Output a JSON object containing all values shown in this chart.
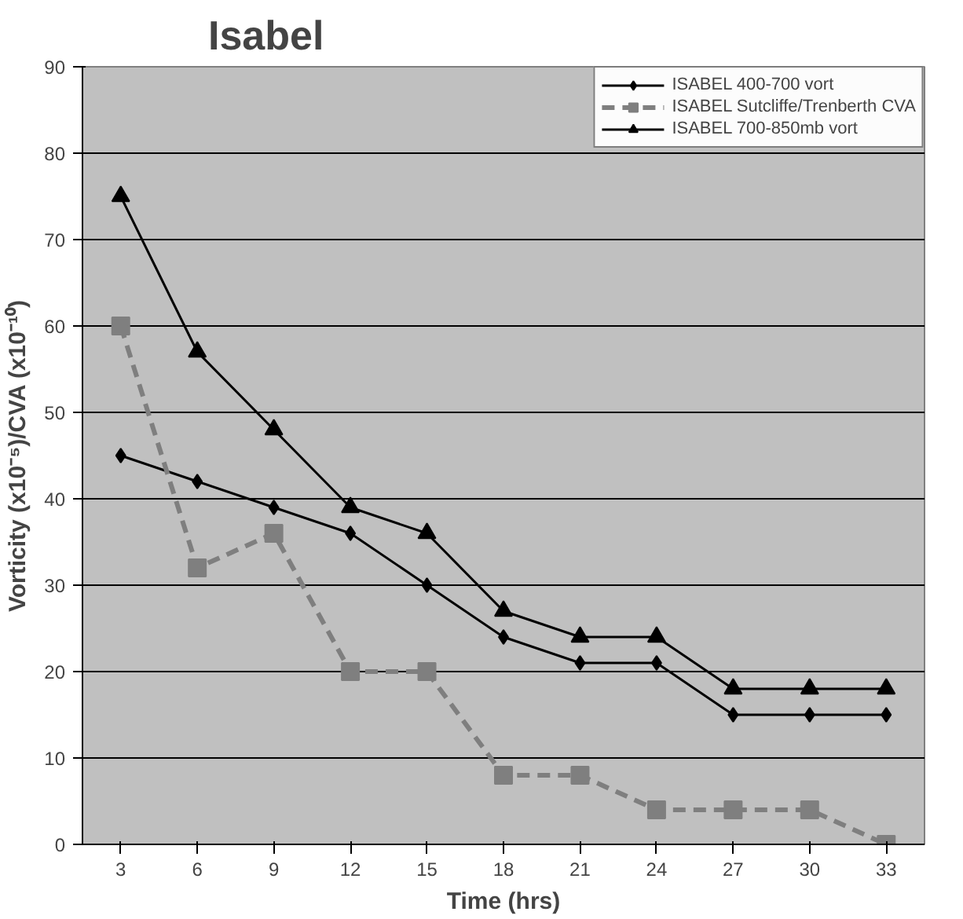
{
  "chart_data": {
    "type": "line",
    "title": "Isabel",
    "xlabel": "Time (hrs)",
    "ylabel": "Vorticity (x10⁻⁵)/CVA (x10⁻¹⁰)",
    "categories": [
      "3",
      "6",
      "9",
      "12",
      "15",
      "18",
      "21",
      "24",
      "27",
      "30",
      "33"
    ],
    "ylim": [
      0,
      90
    ],
    "yticks": [
      0,
      10,
      20,
      30,
      40,
      50,
      60,
      70,
      80,
      90
    ],
    "grid": "y",
    "legend": "top right",
    "series": [
      {
        "name": "ISABEL 400-700 vort",
        "color": "#000000",
        "marker": "diamond",
        "line_style": "solid",
        "values": [
          45,
          42,
          39,
          36,
          30,
          24,
          21,
          21,
          15,
          15,
          15
        ]
      },
      {
        "name": "ISABEL Sutcliffe/Trenberth CVA",
        "color": "#7f7f7f",
        "marker": "square",
        "line_style": "dashed",
        "values": [
          60,
          32,
          36,
          20,
          20,
          8,
          8,
          4,
          4,
          4,
          0
        ]
      },
      {
        "name": "ISABEL 700-850mb vort",
        "color": "#000000",
        "marker": "triangle",
        "line_style": "solid",
        "values": [
          75,
          57,
          48,
          39,
          36,
          27,
          24,
          24,
          18,
          18,
          18
        ]
      }
    ]
  }
}
